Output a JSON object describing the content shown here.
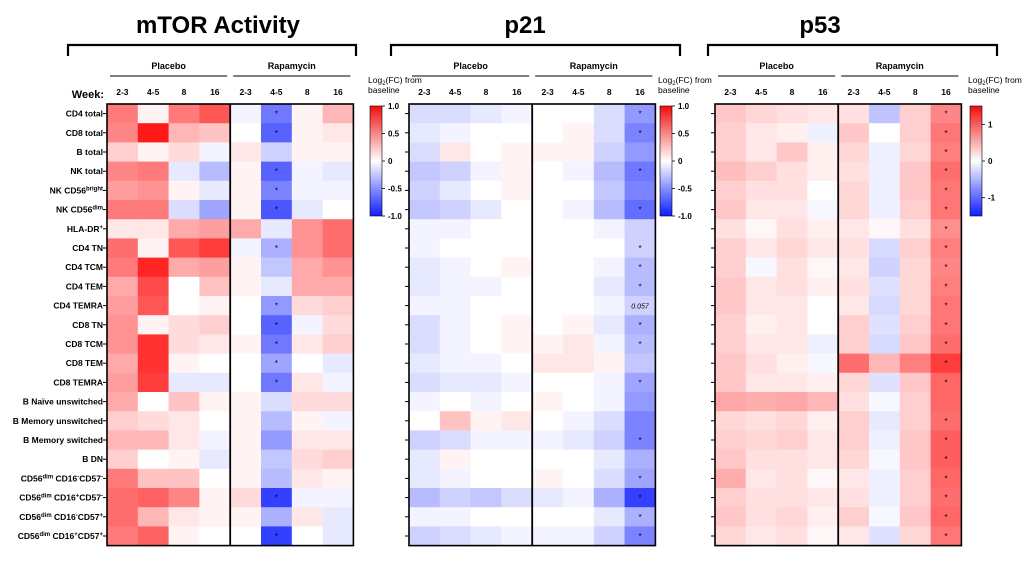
{
  "chart_data": {
    "type": "heatmap",
    "week_label": "Week:",
    "groups": [
      "Placebo",
      "Rapamycin"
    ],
    "weeks": [
      "2-3",
      "4-5",
      "8",
      "16"
    ],
    "colorbar_title": "Log2(FC) from baseline",
    "rows": [
      {
        "name": "CD4 total",
        "sup": ""
      },
      {
        "name": "CD8 total",
        "sup": ""
      },
      {
        "name": "B total",
        "sup": ""
      },
      {
        "name": "NK total",
        "sup": ""
      },
      {
        "name": "NK CD56",
        "sup": "bright"
      },
      {
        "name": "NK CD56",
        "sup": "dim"
      },
      {
        "name": "HLA-DR",
        "sup": "+"
      },
      {
        "name": "CD4 TN",
        "sup": ""
      },
      {
        "name": "CD4 TCM",
        "sup": ""
      },
      {
        "name": "CD4 TEM",
        "sup": ""
      },
      {
        "name": "CD4 TEMRA",
        "sup": ""
      },
      {
        "name": "CD8 TN",
        "sup": ""
      },
      {
        "name": "CD8 TCM",
        "sup": ""
      },
      {
        "name": "CD8 TEM",
        "sup": ""
      },
      {
        "name": "CD8 TEMRA",
        "sup": ""
      },
      {
        "name": "B Naïve unswitched",
        "sup": ""
      },
      {
        "name": "B Memory unswitched",
        "sup": ""
      },
      {
        "name": "B Memory switched",
        "sup": ""
      },
      {
        "name": "B DN",
        "sup": ""
      },
      {
        "name": "CD56dim CD16-CD57-",
        "sup": ""
      },
      {
        "name": "CD56dim CD16+CD57-",
        "sup": ""
      },
      {
        "name": "CD56dim CD16-CD57+",
        "sup": ""
      },
      {
        "name": "CD56dim CD16+CD57+",
        "sup": ""
      }
    ],
    "panels": [
      {
        "title": "mTOR Activity",
        "colorbar_ticks": [
          "1.0",
          "0.5",
          "0",
          "-0.5",
          "-1.0"
        ],
        "vmin": -1,
        "vmax": 1,
        "values": [
          [
            0.55,
            0.05,
            0.55,
            0.7,
            -0.05,
            -0.6,
            0.05,
            0.3
          ],
          [
            0.5,
            0.95,
            0.3,
            0.25,
            0.0,
            -0.7,
            0.05,
            0.1
          ],
          [
            0.2,
            0.05,
            0.15,
            -0.05,
            0.1,
            -0.2,
            0.05,
            0.05
          ],
          [
            0.5,
            0.55,
            -0.1,
            -0.3,
            0.05,
            -0.7,
            -0.05,
            -0.1
          ],
          [
            0.4,
            0.45,
            0.05,
            -0.1,
            0.05,
            -0.55,
            -0.05,
            -0.05
          ],
          [
            0.55,
            0.55,
            -0.15,
            -0.4,
            0.05,
            -0.75,
            -0.1,
            0.0
          ],
          [
            0.1,
            0.1,
            0.35,
            0.4,
            0.35,
            -0.1,
            0.45,
            0.6
          ],
          [
            0.6,
            0.05,
            0.7,
            0.8,
            -0.05,
            -0.35,
            0.45,
            0.6
          ],
          [
            0.55,
            0.9,
            0.35,
            0.4,
            0.05,
            -0.25,
            0.35,
            0.45
          ],
          [
            0.35,
            0.75,
            0.0,
            0.25,
            0.05,
            -0.1,
            0.35,
            0.35
          ],
          [
            0.4,
            0.7,
            0.0,
            0.05,
            0.0,
            -0.45,
            0.15,
            0.2
          ],
          [
            0.45,
            0.05,
            0.15,
            0.2,
            0.0,
            -0.7,
            -0.05,
            0.15
          ],
          [
            0.45,
            0.85,
            0.15,
            0.1,
            0.05,
            -0.6,
            0.1,
            0.2
          ],
          [
            0.35,
            0.85,
            0.05,
            0.0,
            0.0,
            -0.4,
            0.0,
            -0.1
          ],
          [
            0.4,
            0.8,
            -0.1,
            -0.1,
            0.0,
            -0.6,
            0.1,
            -0.05
          ],
          [
            0.35,
            0.0,
            0.25,
            0.05,
            0.05,
            -0.15,
            0.15,
            0.15
          ],
          [
            0.2,
            0.15,
            0.1,
            0.0,
            0.05,
            -0.3,
            0.05,
            -0.05
          ],
          [
            0.3,
            0.3,
            0.1,
            -0.05,
            0.05,
            -0.45,
            0.1,
            0.1
          ],
          [
            0.2,
            0.0,
            0.05,
            -0.1,
            0.05,
            -0.25,
            0.15,
            0.2
          ],
          [
            0.55,
            0.25,
            0.25,
            0.0,
            0.05,
            -0.3,
            0.1,
            0.05
          ],
          [
            0.6,
            0.65,
            0.5,
            0.05,
            0.15,
            -0.85,
            -0.05,
            -0.05
          ],
          [
            0.6,
            0.3,
            0.1,
            0.05,
            0.05,
            -0.35,
            0.1,
            -0.1
          ],
          [
            0.55,
            0.65,
            0.05,
            0.0,
            0.0,
            -0.85,
            0.0,
            -0.1
          ]
        ],
        "stars": [
          [
            0,
            5
          ],
          [
            1,
            5
          ],
          [
            3,
            5
          ],
          [
            4,
            5
          ],
          [
            5,
            5
          ],
          [
            7,
            5
          ],
          [
            10,
            5
          ],
          [
            11,
            5
          ],
          [
            12,
            5
          ],
          [
            13,
            5
          ],
          [
            14,
            5
          ],
          [
            20,
            5
          ],
          [
            22,
            5
          ]
        ],
        "notes": []
      },
      {
        "title": "p21",
        "colorbar_ticks": [
          "1.0",
          "0.5",
          "0",
          "-0.5",
          "-1.0"
        ],
        "vmin": -1,
        "vmax": 1,
        "values": [
          [
            -0.15,
            -0.15,
            -0.1,
            -0.05,
            0.0,
            0.0,
            -0.15,
            -0.45
          ],
          [
            -0.1,
            -0.05,
            0.0,
            0.0,
            0.0,
            0.05,
            -0.15,
            -0.55
          ],
          [
            -0.15,
            0.1,
            0.0,
            0.05,
            0.05,
            0.05,
            -0.2,
            -0.45
          ],
          [
            -0.25,
            -0.2,
            -0.05,
            0.05,
            0.0,
            -0.05,
            -0.3,
            -0.6
          ],
          [
            -0.2,
            -0.1,
            0.0,
            0.05,
            0.0,
            0.0,
            -0.25,
            -0.55
          ],
          [
            -0.25,
            -0.2,
            -0.1,
            0.0,
            0.0,
            -0.05,
            -0.3,
            -0.65
          ],
          [
            -0.05,
            -0.05,
            0.0,
            0.0,
            0.0,
            0.0,
            -0.05,
            -0.2
          ],
          [
            -0.05,
            0.0,
            0.0,
            0.0,
            0.0,
            0.0,
            0.0,
            -0.2
          ],
          [
            -0.1,
            -0.05,
            0.0,
            0.05,
            0.0,
            0.0,
            -0.05,
            -0.3
          ],
          [
            -0.1,
            -0.05,
            -0.05,
            0.0,
            0.0,
            0.0,
            -0.1,
            -0.3
          ],
          [
            -0.05,
            -0.05,
            0.0,
            0.0,
            0.0,
            0.0,
            -0.05,
            -0.2
          ],
          [
            -0.15,
            -0.05,
            0.0,
            0.05,
            0.0,
            0.05,
            -0.1,
            -0.35
          ],
          [
            -0.15,
            -0.05,
            0.0,
            0.05,
            0.05,
            0.1,
            -0.05,
            -0.3
          ],
          [
            -0.1,
            -0.05,
            -0.05,
            0.0,
            0.1,
            0.1,
            0.05,
            -0.25
          ],
          [
            -0.15,
            -0.1,
            -0.1,
            -0.05,
            0.0,
            0.0,
            -0.05,
            -0.4
          ],
          [
            -0.05,
            0.0,
            -0.05,
            0.0,
            0.05,
            0.0,
            -0.05,
            -0.45
          ],
          [
            0.0,
            0.25,
            0.05,
            0.1,
            0.0,
            -0.05,
            -0.15,
            -0.55
          ],
          [
            -0.2,
            -0.15,
            -0.05,
            -0.05,
            -0.05,
            -0.1,
            -0.2,
            -0.55
          ],
          [
            -0.1,
            0.05,
            0.0,
            0.0,
            0.0,
            0.0,
            -0.1,
            -0.35
          ],
          [
            -0.1,
            -0.05,
            0.0,
            0.0,
            0.05,
            0.0,
            -0.15,
            -0.4
          ],
          [
            -0.3,
            -0.2,
            -0.25,
            -0.15,
            -0.1,
            -0.05,
            -0.35,
            -0.85
          ],
          [
            -0.05,
            -0.05,
            0.0,
            0.0,
            0.0,
            0.0,
            -0.1,
            -0.35
          ],
          [
            -0.2,
            -0.15,
            -0.1,
            -0.05,
            -0.05,
            -0.05,
            -0.2,
            -0.55
          ]
        ],
        "stars": [
          [
            0,
            7
          ],
          [
            1,
            7
          ],
          [
            3,
            7
          ],
          [
            5,
            7
          ],
          [
            7,
            7
          ],
          [
            8,
            7
          ],
          [
            9,
            7
          ],
          [
            11,
            7
          ],
          [
            12,
            7
          ],
          [
            14,
            7
          ],
          [
            17,
            7
          ],
          [
            19,
            7
          ],
          [
            20,
            7
          ],
          [
            21,
            7
          ],
          [
            22,
            7
          ]
        ],
        "notes": [
          {
            "row": 10,
            "col": 7,
            "text": "0.057"
          }
        ]
      },
      {
        "title": "p53",
        "colorbar_ticks": [
          "1",
          "0",
          "-1"
        ],
        "vmin": -1.5,
        "vmax": 1.5,
        "values": [
          [
            0.35,
            0.25,
            0.2,
            0.15,
            0.2,
            -0.4,
            0.3,
            0.75
          ],
          [
            0.3,
            0.15,
            0.1,
            -0.1,
            0.35,
            0.0,
            0.3,
            0.85
          ],
          [
            0.3,
            0.15,
            0.35,
            0.1,
            0.25,
            -0.1,
            0.25,
            0.8
          ],
          [
            0.4,
            0.3,
            0.2,
            0.1,
            0.2,
            -0.1,
            0.35,
            0.9
          ],
          [
            0.3,
            0.2,
            0.2,
            0.0,
            0.25,
            -0.1,
            0.35,
            0.85
          ],
          [
            0.35,
            0.15,
            0.15,
            -0.05,
            0.25,
            -0.1,
            0.3,
            0.85
          ],
          [
            0.2,
            0.05,
            0.2,
            0.1,
            0.15,
            0.05,
            0.2,
            0.7
          ],
          [
            0.3,
            0.15,
            0.25,
            0.15,
            0.2,
            -0.25,
            0.3,
            0.8
          ],
          [
            0.3,
            -0.05,
            0.2,
            0.05,
            0.15,
            -0.3,
            0.25,
            0.75
          ],
          [
            0.35,
            0.15,
            0.2,
            0.1,
            0.2,
            -0.2,
            0.25,
            0.8
          ],
          [
            0.35,
            0.15,
            0.15,
            0.0,
            0.15,
            -0.25,
            0.25,
            0.85
          ],
          [
            0.3,
            0.1,
            0.15,
            0.0,
            0.3,
            -0.2,
            0.3,
            0.85
          ],
          [
            0.3,
            0.15,
            0.15,
            -0.1,
            0.3,
            -0.25,
            0.35,
            0.9
          ],
          [
            0.35,
            0.2,
            0.1,
            -0.05,
            0.9,
            0.45,
            0.8,
            1.2
          ],
          [
            0.35,
            0.15,
            0.15,
            0.1,
            0.25,
            -0.2,
            0.35,
            0.95
          ],
          [
            0.55,
            0.5,
            0.55,
            0.45,
            0.2,
            -0.05,
            0.3,
            0.95
          ],
          [
            0.25,
            0.2,
            0.25,
            0.1,
            0.3,
            -0.15,
            0.3,
            0.9
          ],
          [
            0.3,
            0.25,
            0.3,
            0.15,
            0.3,
            -0.1,
            0.35,
            1.0
          ],
          [
            0.35,
            0.2,
            0.2,
            0.15,
            0.25,
            -0.05,
            0.35,
            1.0
          ],
          [
            0.5,
            0.15,
            0.2,
            0.05,
            0.15,
            -0.1,
            0.3,
            0.95
          ],
          [
            0.3,
            0.2,
            0.2,
            0.15,
            0.2,
            -0.1,
            0.3,
            0.9
          ],
          [
            0.35,
            0.2,
            0.25,
            0.1,
            0.3,
            -0.05,
            0.35,
            0.95
          ],
          [
            0.25,
            0.15,
            0.2,
            0.05,
            0.15,
            -0.2,
            0.25,
            0.85
          ]
        ],
        "stars": [
          [
            0,
            7
          ],
          [
            1,
            7
          ],
          [
            2,
            7
          ],
          [
            3,
            7
          ],
          [
            4,
            7
          ],
          [
            5,
            7
          ],
          [
            6,
            7
          ],
          [
            7,
            7
          ],
          [
            8,
            7
          ],
          [
            9,
            7
          ],
          [
            10,
            7
          ],
          [
            11,
            7
          ],
          [
            12,
            7
          ],
          [
            13,
            7
          ],
          [
            14,
            7
          ],
          [
            16,
            7
          ],
          [
            17,
            7
          ],
          [
            18,
            7
          ],
          [
            19,
            7
          ],
          [
            20,
            7
          ],
          [
            21,
            7
          ],
          [
            22,
            7
          ]
        ],
        "notes": []
      }
    ]
  }
}
